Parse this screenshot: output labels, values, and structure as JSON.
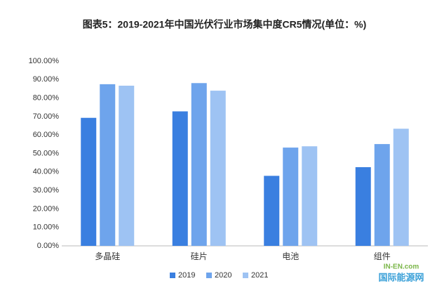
{
  "chart_data": {
    "type": "bar",
    "title": "图表5：2019-2021年中国光伏行业市场集中度CR5情况(单位：%)",
    "categories": [
      "多晶硅",
      "硅片",
      "电池",
      "组件"
    ],
    "series": [
      {
        "name": "2019",
        "color": "#3a7fe0",
        "values": [
          69.3,
          72.8,
          37.9,
          42.6
        ]
      },
      {
        "name": "2020",
        "color": "#6ea4ec",
        "values": [
          87.5,
          88.1,
          53.2,
          55.1
        ]
      },
      {
        "name": "2021",
        "color": "#9ec3f3",
        "values": [
          86.7,
          84.0,
          53.9,
          63.4
        ]
      }
    ],
    "ylim": [
      0,
      100
    ],
    "yticks": [
      {
        "value": 0,
        "label": "0.00%"
      },
      {
        "value": 10,
        "label": "10.00%"
      },
      {
        "value": 20,
        "label": "20.00%"
      },
      {
        "value": 30,
        "label": "30.00%"
      },
      {
        "value": 40,
        "label": "40.00%"
      },
      {
        "value": 50,
        "label": "50.00%"
      },
      {
        "value": 60,
        "label": "60.00%"
      },
      {
        "value": 70,
        "label": "70.00%"
      },
      {
        "value": 80,
        "label": "80.00%"
      },
      {
        "value": 90,
        "label": "90.00%"
      },
      {
        "value": 100,
        "label": "100.00%"
      }
    ],
    "grid": false,
    "legend": "bottom",
    "watermark": [
      "IN-EN.com",
      "国际能源网"
    ]
  }
}
